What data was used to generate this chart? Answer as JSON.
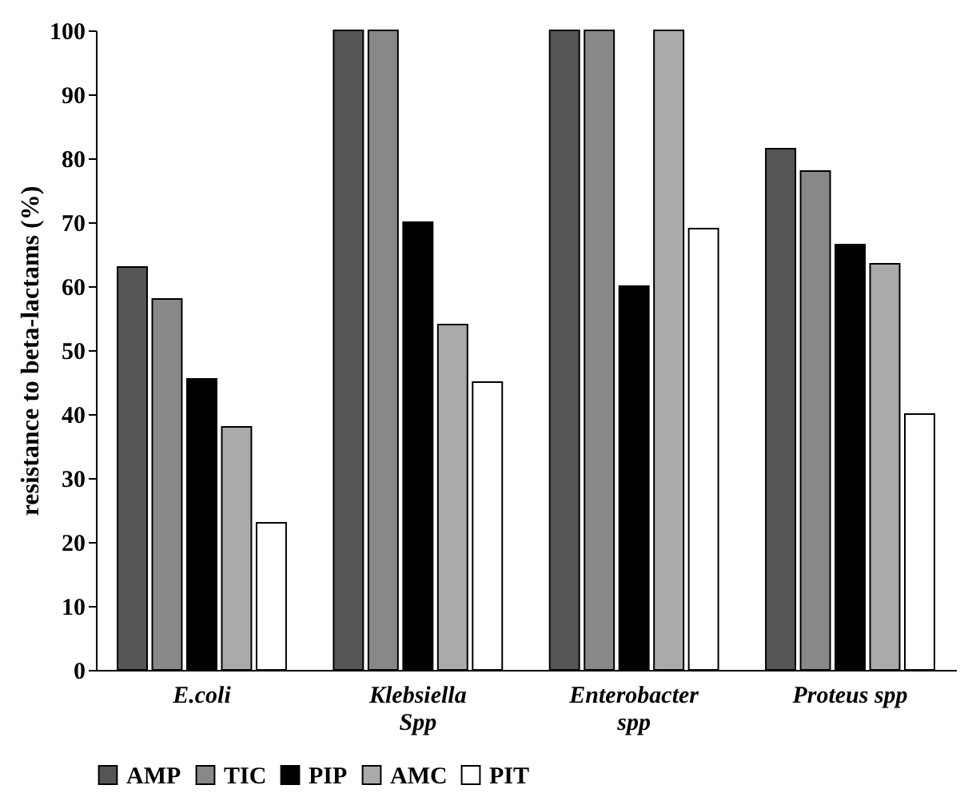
{
  "chart_data": {
    "type": "bar",
    "ylabel": "resistance to beta-lactams (%)",
    "categories": [
      "E.coli",
      "Klebsiella\nSpp",
      "Enterobacter\nspp",
      "Proteus spp"
    ],
    "series": [
      {
        "name": "AMP",
        "color": "#555555",
        "values": [
          63,
          100,
          100,
          81.5
        ]
      },
      {
        "name": "TIC",
        "color": "#888888",
        "values": [
          58,
          100,
          100,
          78
        ]
      },
      {
        "name": "PIP",
        "color": "#000000",
        "values": [
          45.5,
          70,
          60,
          66.5
        ]
      },
      {
        "name": "AMC",
        "color": "#aaaaaa",
        "values": [
          38,
          54,
          100,
          63.5
        ]
      },
      {
        "name": "PIT",
        "color": "#ffffff",
        "values": [
          23,
          45,
          69,
          40
        ]
      }
    ],
    "ylim": [
      0,
      100
    ],
    "yticks": [
      0,
      10,
      20,
      30,
      40,
      50,
      60,
      70,
      80,
      90,
      100
    ],
    "grid": false,
    "legend": "bottom"
  }
}
